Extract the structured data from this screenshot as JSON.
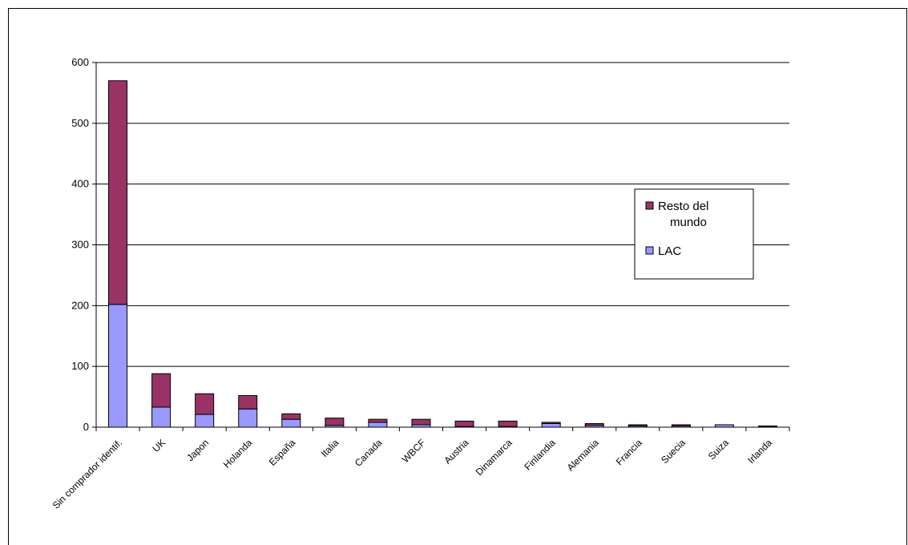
{
  "chart_data": {
    "type": "bar",
    "stacked": true,
    "categories": [
      "Sin comprador identif.",
      "UK",
      "Japon",
      "Holanda",
      "España",
      "Italia",
      "Canada",
      "WBCF",
      "Austria",
      "Dinamarca",
      "Finlandia",
      "Alemania",
      "Francia",
      "Suecia",
      "Suiza",
      "Irlanda"
    ],
    "series": [
      {
        "name": "LAC",
        "color": "#9999ff",
        "values": [
          202,
          33,
          21,
          30,
          13,
          3,
          8,
          4,
          1,
          1,
          6,
          3,
          2,
          2,
          4,
          1
        ]
      },
      {
        "name": "Resto del mundo",
        "color": "#993366",
        "values": [
          368,
          55,
          34,
          22,
          9,
          12,
          5,
          9,
          9,
          9,
          2,
          3,
          2,
          2,
          0,
          1
        ]
      }
    ],
    "legend": {
      "line1": "Resto del",
      "line2": "mundo",
      "lac": "LAC",
      "placement": "right"
    },
    "ylim": [
      0,
      600
    ],
    "yticks": [
      "0",
      "100",
      "200",
      "300",
      "400",
      "500",
      "600"
    ],
    "grid": true,
    "title": "",
    "xlabel": "",
    "ylabel": ""
  }
}
